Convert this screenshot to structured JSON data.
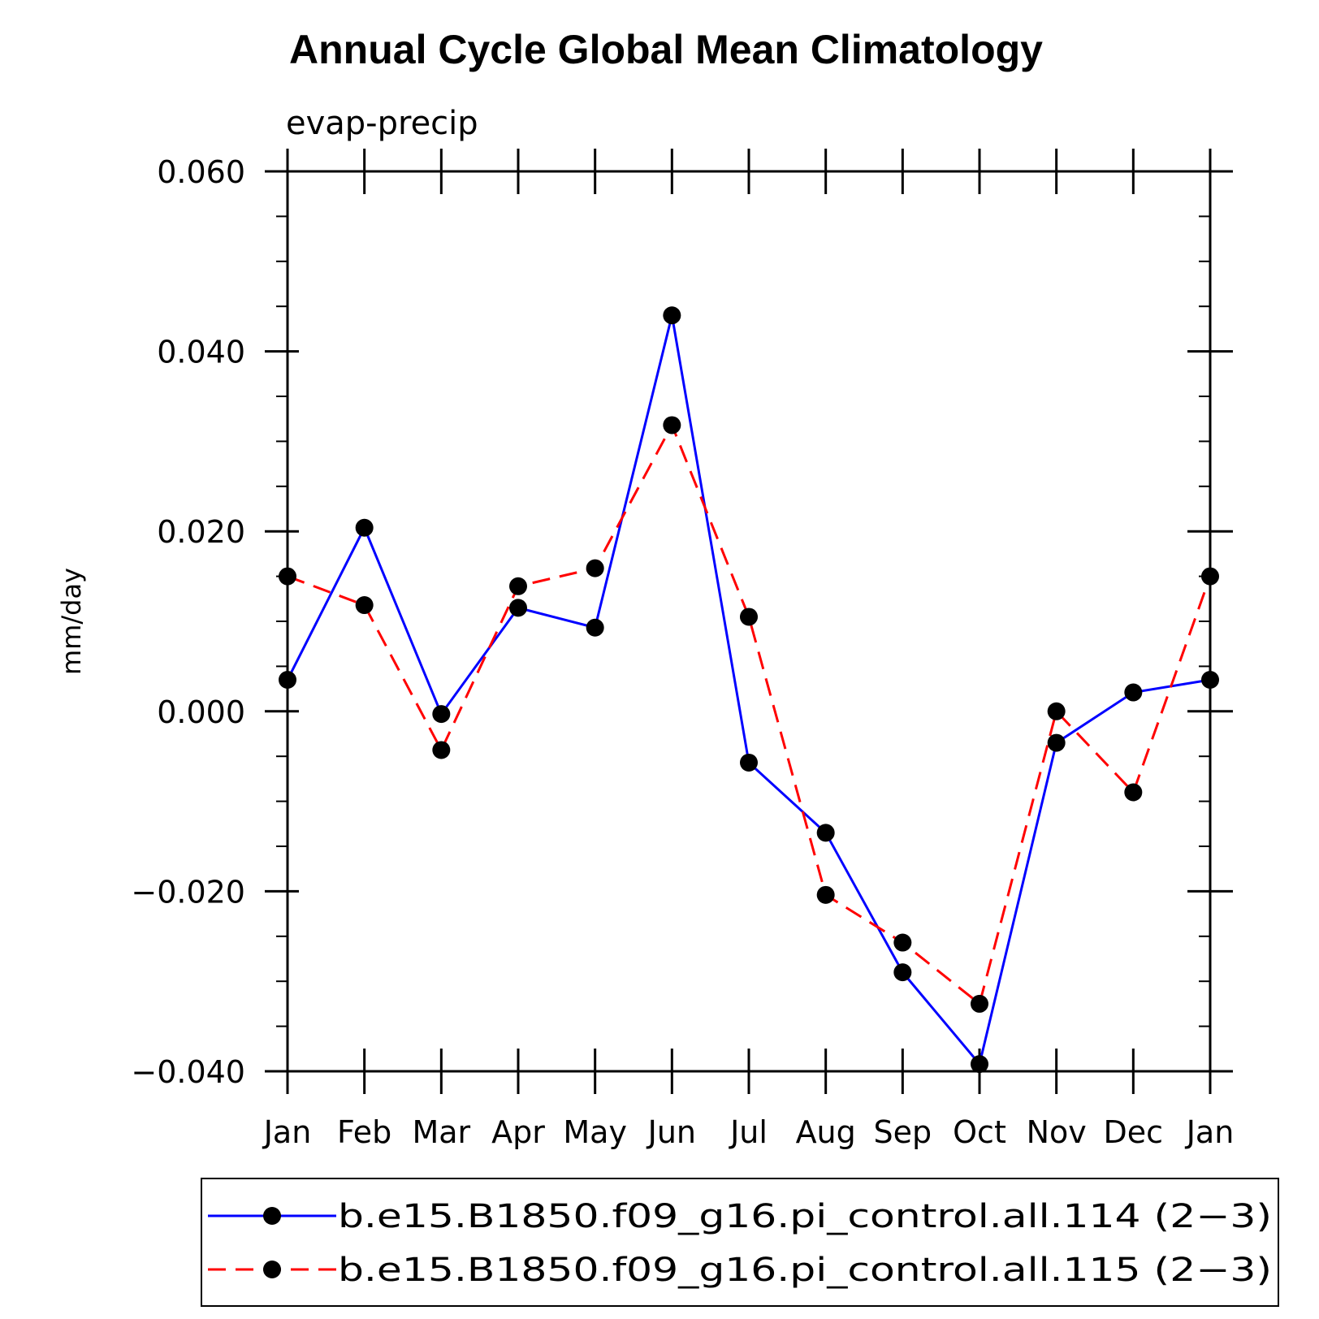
{
  "chart_data": {
    "type": "line",
    "title": "Annual Cycle Global Mean Climatology",
    "subtitle": "evap-precip",
    "xlabel": "",
    "ylabel": "mm/day",
    "categories": [
      "Jan",
      "Feb",
      "Mar",
      "Apr",
      "May",
      "Jun",
      "Jul",
      "Aug",
      "Sep",
      "Oct",
      "Nov",
      "Dec",
      "Jan"
    ],
    "ylim": [
      -0.04,
      0.06
    ],
    "yticks": [
      -0.04,
      -0.02,
      0.0,
      0.02,
      0.04,
      0.06
    ],
    "ytick_labels": [
      "−0.040",
      "−0.020",
      "0.000",
      "0.020",
      "0.040",
      "0.060"
    ],
    "grid": false,
    "legend_position": "bottom",
    "series": [
      {
        "name": "b.e15.B1850.f09_g16.pi_control.all.114 (2−3)",
        "color": "#0000ff",
        "dash": "solid",
        "marker": "filled-circle",
        "values": [
          0.0035,
          0.0204,
          -0.0003,
          0.0115,
          0.0093,
          0.044,
          -0.0057,
          -0.0135,
          -0.029,
          -0.0392,
          -0.0035,
          0.0021,
          0.0035
        ]
      },
      {
        "name": "b.e15.B1850.f09_g16.pi_control.all.115 (2−3)",
        "color": "#ff0000",
        "dash": "dashed",
        "marker": "filled-circle",
        "values": [
          0.015,
          0.0118,
          -0.0043,
          0.0139,
          0.0159,
          0.0318,
          0.0105,
          -0.0204,
          -0.0257,
          -0.0325,
          0.0,
          -0.009,
          0.015
        ]
      }
    ]
  }
}
